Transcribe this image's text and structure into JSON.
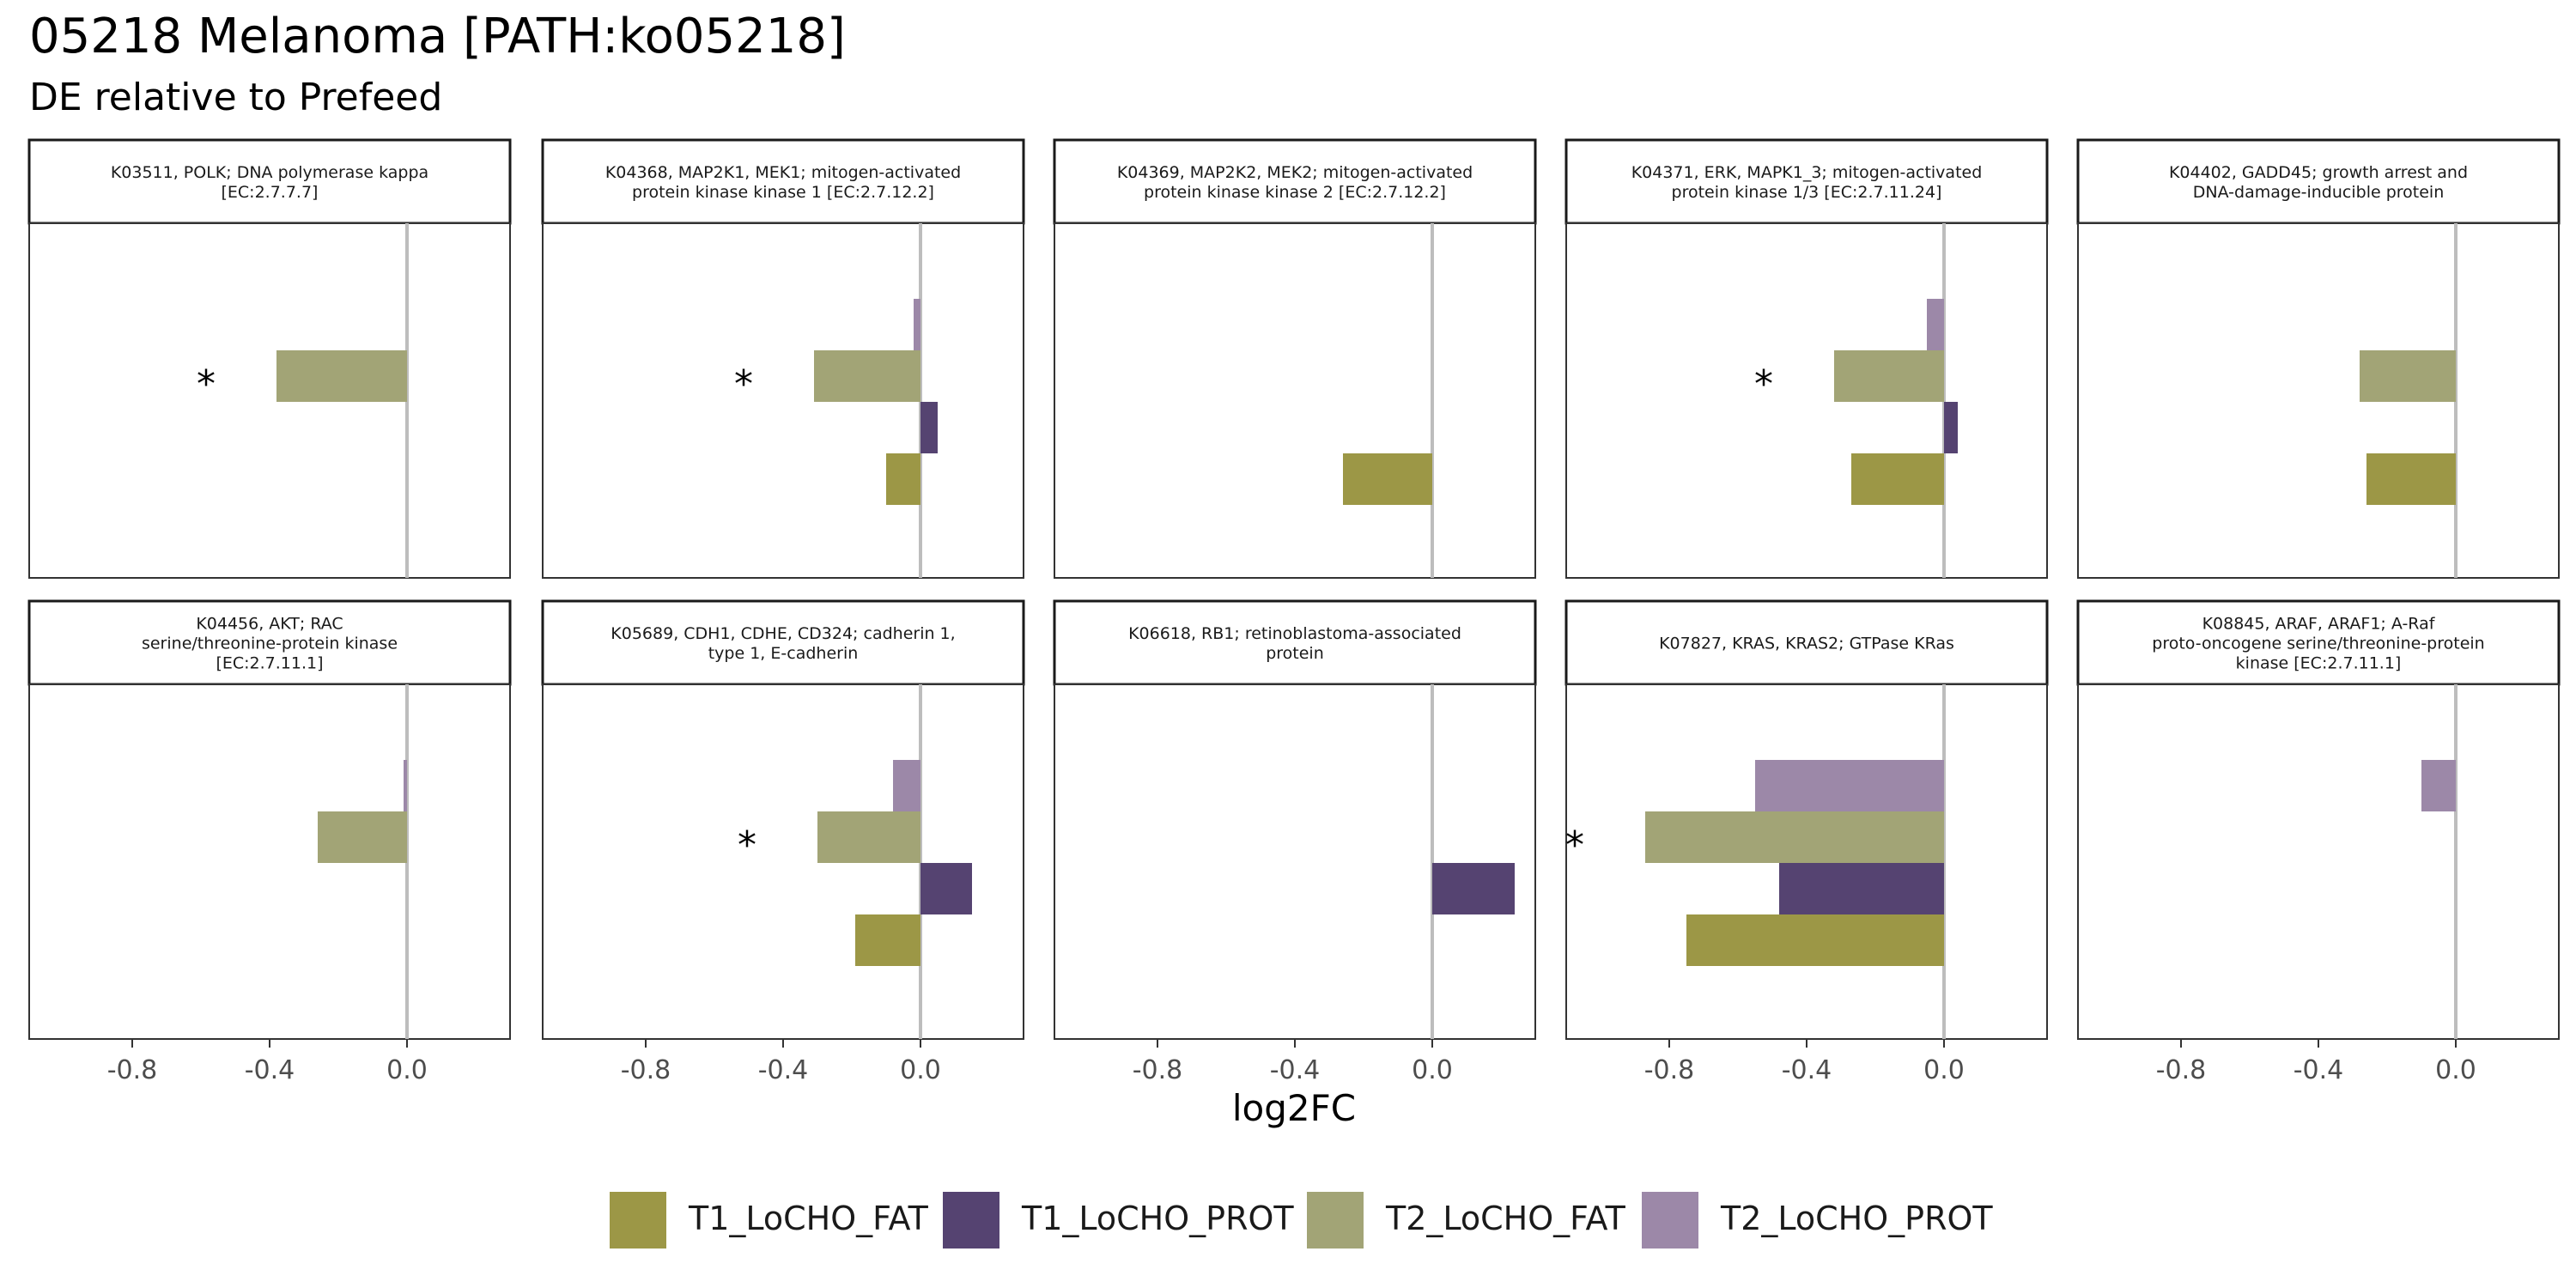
{
  "chart_data": {
    "type": "bar",
    "orientation": "horizontal",
    "title": "05218 Melanoma [PATH:ko05218]",
    "subtitle": "DE relative to Prefeed",
    "xlabel": "log2FC",
    "ylabel": "",
    "xlim": [
      -1.1,
      0.3
    ],
    "xticks": [
      -0.8,
      -0.4,
      0.0
    ],
    "xtick_labels": [
      "-0.8",
      "-0.4",
      "0.0"
    ],
    "grid": false,
    "reference_line": 0.0,
    "legend_position": "bottom",
    "series": [
      {
        "name": "T1_LoCHO_FAT",
        "color": "#9C9746"
      },
      {
        "name": "T1_LoCHO_PROT",
        "color": "#554371"
      },
      {
        "name": "T2_LoCHO_FAT",
        "color": "#A2A476"
      },
      {
        "name": "T2_LoCHO_PROT",
        "color": "#9C88A8"
      }
    ],
    "panels": [
      {
        "strip": [
          "K03511, POLK; DNA polymerase kappa",
          "[EC:2.7.7.7]"
        ],
        "values": {
          "T1_LoCHO_FAT": null,
          "T1_LoCHO_PROT": null,
          "T2_LoCHO_FAT": -0.38,
          "T2_LoCHO_PROT": null
        },
        "significance": {
          "T2_LoCHO_FAT": "*"
        }
      },
      {
        "strip": [
          "K04368, MAP2K1, MEK1; mitogen-activated",
          "protein kinase kinase 1 [EC:2.7.12.2]"
        ],
        "values": {
          "T1_LoCHO_FAT": -0.1,
          "T1_LoCHO_PROT": 0.05,
          "T2_LoCHO_FAT": -0.31,
          "T2_LoCHO_PROT": -0.02
        },
        "significance": {
          "T2_LoCHO_FAT": "*"
        }
      },
      {
        "strip": [
          "K04369, MAP2K2, MEK2; mitogen-activated",
          "protein kinase kinase 2 [EC:2.7.12.2]"
        ],
        "values": {
          "T1_LoCHO_FAT": -0.26,
          "T1_LoCHO_PROT": null,
          "T2_LoCHO_FAT": null,
          "T2_LoCHO_PROT": null
        },
        "significance": {}
      },
      {
        "strip": [
          "K04371, ERK, MAPK1_3; mitogen-activated",
          "protein kinase 1/3 [EC:2.7.11.24]"
        ],
        "values": {
          "T1_LoCHO_FAT": -0.27,
          "T1_LoCHO_PROT": 0.04,
          "T2_LoCHO_FAT": -0.32,
          "T2_LoCHO_PROT": -0.05
        },
        "significance": {
          "T2_LoCHO_FAT": "*"
        }
      },
      {
        "strip": [
          "K04402, GADD45; growth arrest and",
          "DNA-damage-inducible protein"
        ],
        "values": {
          "T1_LoCHO_FAT": -0.26,
          "T1_LoCHO_PROT": null,
          "T2_LoCHO_FAT": -0.28,
          "T2_LoCHO_PROT": null
        },
        "significance": {}
      },
      {
        "strip": [
          "K04456, AKT; RAC",
          "serine/threonine-protein kinase",
          "[EC:2.7.11.1]"
        ],
        "values": {
          "T1_LoCHO_FAT": null,
          "T1_LoCHO_PROT": null,
          "T2_LoCHO_FAT": -0.26,
          "T2_LoCHO_PROT": -0.01
        },
        "significance": {}
      },
      {
        "strip": [
          "K05689, CDH1, CDHE, CD324; cadherin 1,",
          "type 1, E-cadherin"
        ],
        "values": {
          "T1_LoCHO_FAT": -0.19,
          "T1_LoCHO_PROT": 0.15,
          "T2_LoCHO_FAT": -0.3,
          "T2_LoCHO_PROT": -0.08
        },
        "significance": {
          "T2_LoCHO_FAT": "*"
        }
      },
      {
        "strip": [
          "K06618, RB1; retinoblastoma-associated",
          "protein"
        ],
        "values": {
          "T1_LoCHO_FAT": null,
          "T1_LoCHO_PROT": 0.24,
          "T2_LoCHO_FAT": null,
          "T2_LoCHO_PROT": null
        },
        "significance": {}
      },
      {
        "strip": [
          "K07827, KRAS, KRAS2; GTPase KRas"
        ],
        "values": {
          "T1_LoCHO_FAT": -0.75,
          "T1_LoCHO_PROT": -0.48,
          "T2_LoCHO_FAT": -0.87,
          "T2_LoCHO_PROT": -0.55
        },
        "significance": {
          "T2_LoCHO_FAT": "*"
        }
      },
      {
        "strip": [
          "K08845, ARAF, ARAF1; A-Raf",
          "proto-oncogene serine/threonine-protein",
          "kinase [EC:2.7.11.1]"
        ],
        "values": {
          "T1_LoCHO_FAT": null,
          "T1_LoCHO_PROT": null,
          "T2_LoCHO_FAT": null,
          "T2_LoCHO_PROT": -0.1
        },
        "significance": {}
      }
    ]
  }
}
